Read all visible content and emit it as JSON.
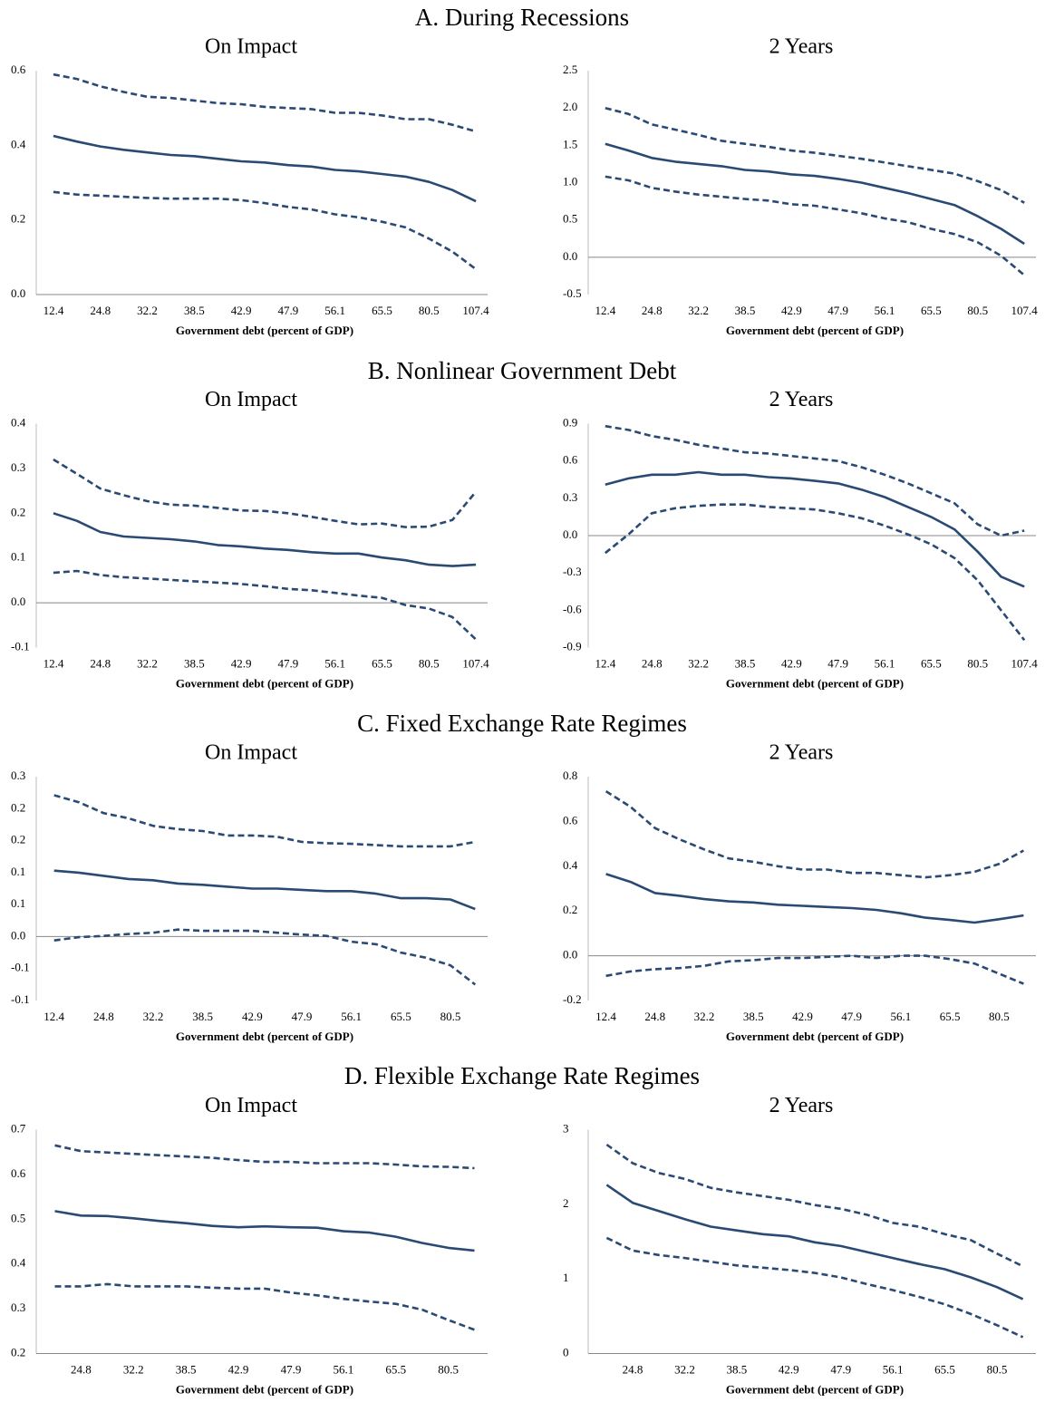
{
  "section_titles": [
    "A. During Recessions",
    "B. Nonlinear Government Debt",
    "C. Fixed Exchange Rate Regimes",
    "D. Flexible Exchange Rate Regimes"
  ],
  "chart_data": [
    {
      "type": "line",
      "title": "On Impact",
      "xlabel": "Government debt (percent of GDP)",
      "categories": [
        "12.4",
        null,
        "24.8",
        null,
        "32.2",
        null,
        "38.5",
        null,
        "42.9",
        null,
        "47.9",
        null,
        "56.1",
        null,
        "65.5",
        null,
        "80.5",
        null,
        "107.4"
      ],
      "ylim": [
        0,
        0.6
      ],
      "yticks": [
        {
          "value": 0,
          "label": "0.0"
        },
        0.2,
        0.4,
        0.6
      ],
      "series": [
        {
          "color": "#2a4a73",
          "style": "dashed",
          "values": [
            0.59,
            0.578,
            0.558,
            0.543,
            0.53,
            0.527,
            0.52,
            0.513,
            0.51,
            0.503,
            0.5,
            0.497,
            0.487,
            0.487,
            0.48,
            0.47,
            0.47,
            0.455,
            0.437
          ]
        },
        {
          "color": "#2a4a73",
          "style": "solid",
          "values": [
            0.425,
            0.41,
            0.397,
            0.388,
            0.381,
            0.374,
            0.371,
            0.364,
            0.357,
            0.354,
            0.347,
            0.343,
            0.334,
            0.33,
            0.323,
            0.316,
            0.302,
            0.28,
            0.25
          ]
        },
        {
          "color": "#2a4a73",
          "style": "dashed",
          "values": [
            0.275,
            0.268,
            0.265,
            0.262,
            0.259,
            0.257,
            0.257,
            0.257,
            0.253,
            0.245,
            0.235,
            0.228,
            0.215,
            0.207,
            0.195,
            0.18,
            0.15,
            0.115,
            0.068
          ]
        }
      ]
    },
    {
      "type": "line",
      "title": "2 Years",
      "xlabel": "Government debt (percent of GDP)",
      "categories": [
        "12.4",
        null,
        "24.8",
        null,
        "32.2",
        null,
        "38.5",
        null,
        "42.9",
        null,
        "47.9",
        null,
        "56.1",
        null,
        "65.5",
        null,
        "80.5",
        null,
        "107.4"
      ],
      "ylim": [
        -0.5,
        2.5
      ],
      "yticks": [
        -0.5,
        {
          "value": 0,
          "label": "0.0"
        },
        0.5,
        {
          "value": 1,
          "label": "1.0"
        },
        1.5,
        {
          "value": 2,
          "label": "2.0"
        },
        2.5
      ],
      "series": [
        {
          "color": "#2a4a73",
          "style": "dashed",
          "values": [
            2.0,
            1.92,
            1.78,
            1.71,
            1.64,
            1.56,
            1.52,
            1.48,
            1.43,
            1.4,
            1.36,
            1.32,
            1.27,
            1.22,
            1.17,
            1.12,
            1.02,
            0.9,
            0.73
          ]
        },
        {
          "color": "#2a4a73",
          "style": "solid",
          "values": [
            1.52,
            1.43,
            1.33,
            1.28,
            1.25,
            1.22,
            1.17,
            1.15,
            1.11,
            1.09,
            1.05,
            1.0,
            0.93,
            0.86,
            0.78,
            0.7,
            0.55,
            0.38,
            0.18
          ]
        },
        {
          "color": "#2a4a73",
          "style": "dashed",
          "values": [
            1.08,
            1.03,
            0.93,
            0.88,
            0.84,
            0.81,
            0.78,
            0.76,
            0.71,
            0.69,
            0.64,
            0.59,
            0.52,
            0.47,
            0.38,
            0.31,
            0.2,
            0.02,
            -0.24
          ]
        }
      ]
    },
    {
      "type": "line",
      "title": "On Impact",
      "xlabel": "Government debt (percent of GDP)",
      "categories": [
        "12.4",
        null,
        "24.8",
        null,
        "32.2",
        null,
        "38.5",
        null,
        "42.9",
        null,
        "47.9",
        null,
        "56.1",
        null,
        "65.5",
        null,
        "80.5",
        null,
        "107.4"
      ],
      "ylim": [
        -0.1,
        0.4
      ],
      "yticks": [
        -0.1,
        {
          "value": 0,
          "label": "0.0"
        },
        0.1,
        0.2,
        0.3,
        0.4
      ],
      "series": [
        {
          "color": "#2a4a73",
          "style": "dashed",
          "values": [
            0.32,
            0.288,
            0.255,
            0.24,
            0.227,
            0.219,
            0.217,
            0.212,
            0.206,
            0.205,
            0.2,
            0.192,
            0.183,
            0.175,
            0.177,
            0.169,
            0.17,
            0.185,
            0.248
          ]
        },
        {
          "color": "#2a4a73",
          "style": "solid",
          "values": [
            0.2,
            0.183,
            0.158,
            0.148,
            0.145,
            0.142,
            0.137,
            0.129,
            0.126,
            0.121,
            0.118,
            0.113,
            0.11,
            0.11,
            0.101,
            0.095,
            0.085,
            0.082,
            0.085
          ]
        },
        {
          "color": "#2a4a73",
          "style": "dashed",
          "values": [
            0.067,
            0.071,
            0.062,
            0.057,
            0.054,
            0.051,
            0.048,
            0.045,
            0.042,
            0.037,
            0.031,
            0.028,
            0.022,
            0.016,
            0.011,
            -0.005,
            -0.013,
            -0.032,
            -0.082
          ]
        }
      ]
    },
    {
      "type": "line",
      "title": "2 Years",
      "xlabel": "Government debt (percent of GDP)",
      "categories": [
        "12.4",
        null,
        "24.8",
        null,
        "32.2",
        null,
        "38.5",
        null,
        "42.9",
        null,
        "47.9",
        null,
        "56.1",
        null,
        "65.5",
        null,
        "80.5",
        null,
        "107.4"
      ],
      "ylim": [
        -0.9,
        0.9
      ],
      "yticks": [
        -0.9,
        -0.6,
        -0.3,
        {
          "value": 0,
          "label": "0.0"
        },
        0.3,
        0.6,
        0.9
      ],
      "series": [
        {
          "color": "#2a4a73",
          "style": "dashed",
          "values": [
            0.88,
            0.85,
            0.8,
            0.77,
            0.73,
            0.7,
            0.67,
            0.66,
            0.64,
            0.62,
            0.6,
            0.55,
            0.49,
            0.42,
            0.34,
            0.26,
            0.09,
            0.0,
            0.04
          ]
        },
        {
          "color": "#2a4a73",
          "style": "solid",
          "values": [
            0.41,
            0.46,
            0.49,
            0.49,
            0.51,
            0.49,
            0.49,
            0.47,
            0.46,
            0.44,
            0.42,
            0.37,
            0.31,
            0.23,
            0.15,
            0.05,
            -0.13,
            -0.33,
            -0.41
          ]
        },
        {
          "color": "#2a4a73",
          "style": "dashed",
          "values": [
            -0.14,
            0.01,
            0.18,
            0.22,
            0.24,
            0.25,
            0.25,
            0.23,
            0.22,
            0.21,
            0.18,
            0.14,
            0.08,
            0.01,
            -0.07,
            -0.18,
            -0.36,
            -0.6,
            -0.84
          ]
        }
      ]
    },
    {
      "type": "line",
      "title": "On Impact",
      "xlabel": "Government debt (percent of GDP)",
      "categories": [
        "12.4",
        null,
        "24.8",
        null,
        "32.2",
        null,
        "38.5",
        null,
        "42.9",
        null,
        "47.9",
        null,
        "56.1",
        null,
        "65.5",
        null,
        "80.5",
        null
      ],
      "ylim": [
        -0.1,
        0.25
      ],
      "yticks": [
        -0.1,
        {
          "value": -0.05,
          "label": "-0.1"
        },
        {
          "value": 0,
          "label": "0.0"
        },
        {
          "value": 0.05,
          "label": "0.1"
        },
        0.1,
        {
          "value": 0.15,
          "label": "0.2"
        },
        0.2,
        {
          "value": 0.25,
          "label": "0.3"
        }
      ],
      "series": [
        {
          "color": "#2a4a73",
          "style": "dashed",
          "values": [
            0.221,
            0.21,
            0.193,
            0.185,
            0.173,
            0.168,
            0.165,
            0.158,
            0.158,
            0.156,
            0.148,
            0.146,
            0.145,
            0.143,
            0.141,
            0.141,
            0.141,
            0.148
          ]
        },
        {
          "color": "#2a4a73",
          "style": "solid",
          "values": [
            0.103,
            0.1,
            0.095,
            0.09,
            0.088,
            0.083,
            0.081,
            0.078,
            0.075,
            0.075,
            0.073,
            0.071,
            0.071,
            0.067,
            0.06,
            0.06,
            0.058,
            0.043
          ]
        },
        {
          "color": "#2a4a73",
          "style": "dashed",
          "values": [
            -0.006,
            -0.001,
            0.001,
            0.004,
            0.006,
            0.011,
            0.009,
            0.009,
            0.009,
            0.006,
            0.003,
            0.001,
            -0.008,
            -0.012,
            -0.025,
            -0.033,
            -0.045,
            -0.075
          ]
        }
      ]
    },
    {
      "type": "line",
      "title": "2 Years",
      "xlabel": "Government debt (percent of GDP)",
      "categories": [
        "12.4",
        null,
        "24.8",
        null,
        "32.2",
        null,
        "38.5",
        null,
        "42.9",
        null,
        "47.9",
        null,
        "56.1",
        null,
        "65.5",
        null,
        "80.5",
        null
      ],
      "ylim": [
        -0.2,
        0.8
      ],
      "yticks": [
        -0.2,
        {
          "value": 0,
          "label": "0.0"
        },
        0.2,
        0.4,
        0.6,
        0.8
      ],
      "series": [
        {
          "color": "#2a4a73",
          "style": "dashed",
          "values": [
            0.735,
            0.665,
            0.57,
            0.52,
            0.475,
            0.435,
            0.42,
            0.4,
            0.385,
            0.385,
            0.37,
            0.37,
            0.36,
            0.35,
            0.36,
            0.375,
            0.41,
            0.47
          ]
        },
        {
          "color": "#2a4a73",
          "style": "solid",
          "values": [
            0.365,
            0.33,
            0.28,
            0.268,
            0.253,
            0.243,
            0.238,
            0.228,
            0.223,
            0.218,
            0.213,
            0.205,
            0.19,
            0.17,
            0.16,
            0.148,
            0.163,
            0.18
          ]
        },
        {
          "color": "#2a4a73",
          "style": "dashed",
          "values": [
            -0.09,
            -0.07,
            -0.06,
            -0.055,
            -0.045,
            -0.025,
            -0.02,
            -0.01,
            -0.01,
            -0.005,
            0.0,
            -0.01,
            0.0,
            0.0,
            -0.015,
            -0.035,
            -0.08,
            -0.125
          ]
        }
      ]
    },
    {
      "type": "line",
      "title": "On Impact",
      "xlabel": "Government debt (percent of GDP)",
      "categories": [
        null,
        "24.8",
        null,
        "32.2",
        null,
        "38.5",
        null,
        "42.9",
        null,
        "47.9",
        null,
        "56.1",
        null,
        "65.5",
        null,
        "80.5",
        null
      ],
      "ylim": [
        0.2,
        0.7
      ],
      "yticks": [
        0.2,
        0.3,
        0.4,
        0.5,
        0.6,
        0.7
      ],
      "series": [
        {
          "color": "#2a4a73",
          "style": "dashed",
          "values": [
            0.665,
            0.652,
            0.649,
            0.646,
            0.643,
            0.64,
            0.637,
            0.632,
            0.628,
            0.628,
            0.625,
            0.625,
            0.625,
            0.622,
            0.618,
            0.617,
            0.614
          ]
        },
        {
          "color": "#2a4a73",
          "style": "solid",
          "values": [
            0.518,
            0.508,
            0.507,
            0.502,
            0.496,
            0.491,
            0.485,
            0.482,
            0.484,
            0.482,
            0.481,
            0.473,
            0.47,
            0.461,
            0.447,
            0.436,
            0.43
          ]
        },
        {
          "color": "#2a4a73",
          "style": "dashed",
          "values": [
            0.35,
            0.35,
            0.355,
            0.35,
            0.35,
            0.35,
            0.347,
            0.345,
            0.345,
            0.336,
            0.33,
            0.322,
            0.316,
            0.311,
            0.298,
            0.275,
            0.253
          ]
        }
      ]
    },
    {
      "type": "line",
      "title": "2 Years",
      "xlabel": "Government debt (percent of GDP)",
      "categories": [
        null,
        "24.8",
        null,
        "32.2",
        null,
        "38.5",
        null,
        "42.9",
        null,
        "47.9",
        null,
        "56.1",
        null,
        "65.5",
        null,
        "80.5",
        null
      ],
      "ylim": [
        0,
        3
      ],
      "yticks": [
        0,
        1,
        2,
        3
      ],
      "series": [
        {
          "color": "#2a4a73",
          "style": "dashed",
          "values": [
            2.8,
            2.55,
            2.42,
            2.34,
            2.22,
            2.16,
            2.11,
            2.06,
            1.99,
            1.94,
            1.86,
            1.75,
            1.7,
            1.6,
            1.52,
            1.34,
            1.17
          ]
        },
        {
          "color": "#2a4a73",
          "style": "solid",
          "values": [
            2.26,
            2.02,
            1.91,
            1.8,
            1.7,
            1.65,
            1.6,
            1.57,
            1.49,
            1.44,
            1.36,
            1.28,
            1.2,
            1.13,
            1.02,
            0.89,
            0.73
          ]
        },
        {
          "color": "#2a4a73",
          "style": "dashed",
          "values": [
            1.55,
            1.38,
            1.32,
            1.28,
            1.23,
            1.18,
            1.15,
            1.12,
            1.08,
            1.02,
            0.93,
            0.85,
            0.76,
            0.66,
            0.53,
            0.38,
            0.22
          ]
        }
      ]
    }
  ]
}
